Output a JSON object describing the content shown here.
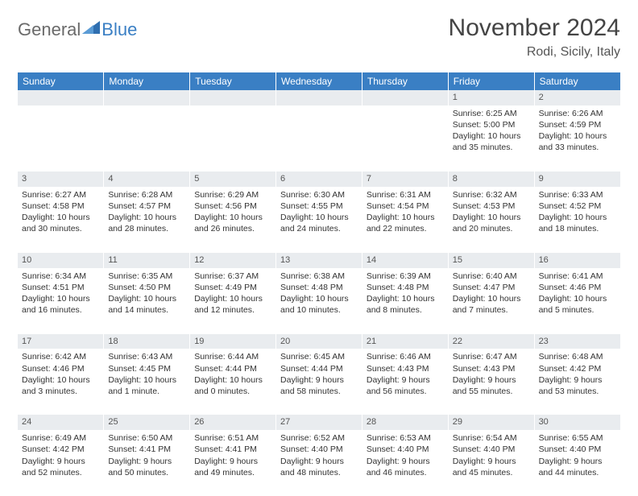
{
  "logo": {
    "part1": "General",
    "part2": "Blue"
  },
  "title": "November 2024",
  "location": "Rodi, Sicily, Italy",
  "colors": {
    "header_bg": "#3a7fc4",
    "header_fg": "#ffffff",
    "dayrow_bg": "#e9ecef",
    "text": "#333333",
    "logo_gray": "#6a6a6a",
    "logo_blue": "#3a7fc4"
  },
  "day_headers": [
    "Sunday",
    "Monday",
    "Tuesday",
    "Wednesday",
    "Thursday",
    "Friday",
    "Saturday"
  ],
  "weeks": [
    [
      null,
      null,
      null,
      null,
      null,
      {
        "n": "1",
        "sr": "Sunrise: 6:25 AM",
        "ss": "Sunset: 5:00 PM",
        "d1": "Daylight: 10 hours",
        "d2": "and 35 minutes."
      },
      {
        "n": "2",
        "sr": "Sunrise: 6:26 AM",
        "ss": "Sunset: 4:59 PM",
        "d1": "Daylight: 10 hours",
        "d2": "and 33 minutes."
      }
    ],
    [
      {
        "n": "3",
        "sr": "Sunrise: 6:27 AM",
        "ss": "Sunset: 4:58 PM",
        "d1": "Daylight: 10 hours",
        "d2": "and 30 minutes."
      },
      {
        "n": "4",
        "sr": "Sunrise: 6:28 AM",
        "ss": "Sunset: 4:57 PM",
        "d1": "Daylight: 10 hours",
        "d2": "and 28 minutes."
      },
      {
        "n": "5",
        "sr": "Sunrise: 6:29 AM",
        "ss": "Sunset: 4:56 PM",
        "d1": "Daylight: 10 hours",
        "d2": "and 26 minutes."
      },
      {
        "n": "6",
        "sr": "Sunrise: 6:30 AM",
        "ss": "Sunset: 4:55 PM",
        "d1": "Daylight: 10 hours",
        "d2": "and 24 minutes."
      },
      {
        "n": "7",
        "sr": "Sunrise: 6:31 AM",
        "ss": "Sunset: 4:54 PM",
        "d1": "Daylight: 10 hours",
        "d2": "and 22 minutes."
      },
      {
        "n": "8",
        "sr": "Sunrise: 6:32 AM",
        "ss": "Sunset: 4:53 PM",
        "d1": "Daylight: 10 hours",
        "d2": "and 20 minutes."
      },
      {
        "n": "9",
        "sr": "Sunrise: 6:33 AM",
        "ss": "Sunset: 4:52 PM",
        "d1": "Daylight: 10 hours",
        "d2": "and 18 minutes."
      }
    ],
    [
      {
        "n": "10",
        "sr": "Sunrise: 6:34 AM",
        "ss": "Sunset: 4:51 PM",
        "d1": "Daylight: 10 hours",
        "d2": "and 16 minutes."
      },
      {
        "n": "11",
        "sr": "Sunrise: 6:35 AM",
        "ss": "Sunset: 4:50 PM",
        "d1": "Daylight: 10 hours",
        "d2": "and 14 minutes."
      },
      {
        "n": "12",
        "sr": "Sunrise: 6:37 AM",
        "ss": "Sunset: 4:49 PM",
        "d1": "Daylight: 10 hours",
        "d2": "and 12 minutes."
      },
      {
        "n": "13",
        "sr": "Sunrise: 6:38 AM",
        "ss": "Sunset: 4:48 PM",
        "d1": "Daylight: 10 hours",
        "d2": "and 10 minutes."
      },
      {
        "n": "14",
        "sr": "Sunrise: 6:39 AM",
        "ss": "Sunset: 4:48 PM",
        "d1": "Daylight: 10 hours",
        "d2": "and 8 minutes."
      },
      {
        "n": "15",
        "sr": "Sunrise: 6:40 AM",
        "ss": "Sunset: 4:47 PM",
        "d1": "Daylight: 10 hours",
        "d2": "and 7 minutes."
      },
      {
        "n": "16",
        "sr": "Sunrise: 6:41 AM",
        "ss": "Sunset: 4:46 PM",
        "d1": "Daylight: 10 hours",
        "d2": "and 5 minutes."
      }
    ],
    [
      {
        "n": "17",
        "sr": "Sunrise: 6:42 AM",
        "ss": "Sunset: 4:46 PM",
        "d1": "Daylight: 10 hours",
        "d2": "and 3 minutes."
      },
      {
        "n": "18",
        "sr": "Sunrise: 6:43 AM",
        "ss": "Sunset: 4:45 PM",
        "d1": "Daylight: 10 hours",
        "d2": "and 1 minute."
      },
      {
        "n": "19",
        "sr": "Sunrise: 6:44 AM",
        "ss": "Sunset: 4:44 PM",
        "d1": "Daylight: 10 hours",
        "d2": "and 0 minutes."
      },
      {
        "n": "20",
        "sr": "Sunrise: 6:45 AM",
        "ss": "Sunset: 4:44 PM",
        "d1": "Daylight: 9 hours",
        "d2": "and 58 minutes."
      },
      {
        "n": "21",
        "sr": "Sunrise: 6:46 AM",
        "ss": "Sunset: 4:43 PM",
        "d1": "Daylight: 9 hours",
        "d2": "and 56 minutes."
      },
      {
        "n": "22",
        "sr": "Sunrise: 6:47 AM",
        "ss": "Sunset: 4:43 PM",
        "d1": "Daylight: 9 hours",
        "d2": "and 55 minutes."
      },
      {
        "n": "23",
        "sr": "Sunrise: 6:48 AM",
        "ss": "Sunset: 4:42 PM",
        "d1": "Daylight: 9 hours",
        "d2": "and 53 minutes."
      }
    ],
    [
      {
        "n": "24",
        "sr": "Sunrise: 6:49 AM",
        "ss": "Sunset: 4:42 PM",
        "d1": "Daylight: 9 hours",
        "d2": "and 52 minutes."
      },
      {
        "n": "25",
        "sr": "Sunrise: 6:50 AM",
        "ss": "Sunset: 4:41 PM",
        "d1": "Daylight: 9 hours",
        "d2": "and 50 minutes."
      },
      {
        "n": "26",
        "sr": "Sunrise: 6:51 AM",
        "ss": "Sunset: 4:41 PM",
        "d1": "Daylight: 9 hours",
        "d2": "and 49 minutes."
      },
      {
        "n": "27",
        "sr": "Sunrise: 6:52 AM",
        "ss": "Sunset: 4:40 PM",
        "d1": "Daylight: 9 hours",
        "d2": "and 48 minutes."
      },
      {
        "n": "28",
        "sr": "Sunrise: 6:53 AM",
        "ss": "Sunset: 4:40 PM",
        "d1": "Daylight: 9 hours",
        "d2": "and 46 minutes."
      },
      {
        "n": "29",
        "sr": "Sunrise: 6:54 AM",
        "ss": "Sunset: 4:40 PM",
        "d1": "Daylight: 9 hours",
        "d2": "and 45 minutes."
      },
      {
        "n": "30",
        "sr": "Sunrise: 6:55 AM",
        "ss": "Sunset: 4:40 PM",
        "d1": "Daylight: 9 hours",
        "d2": "and 44 minutes."
      }
    ]
  ]
}
